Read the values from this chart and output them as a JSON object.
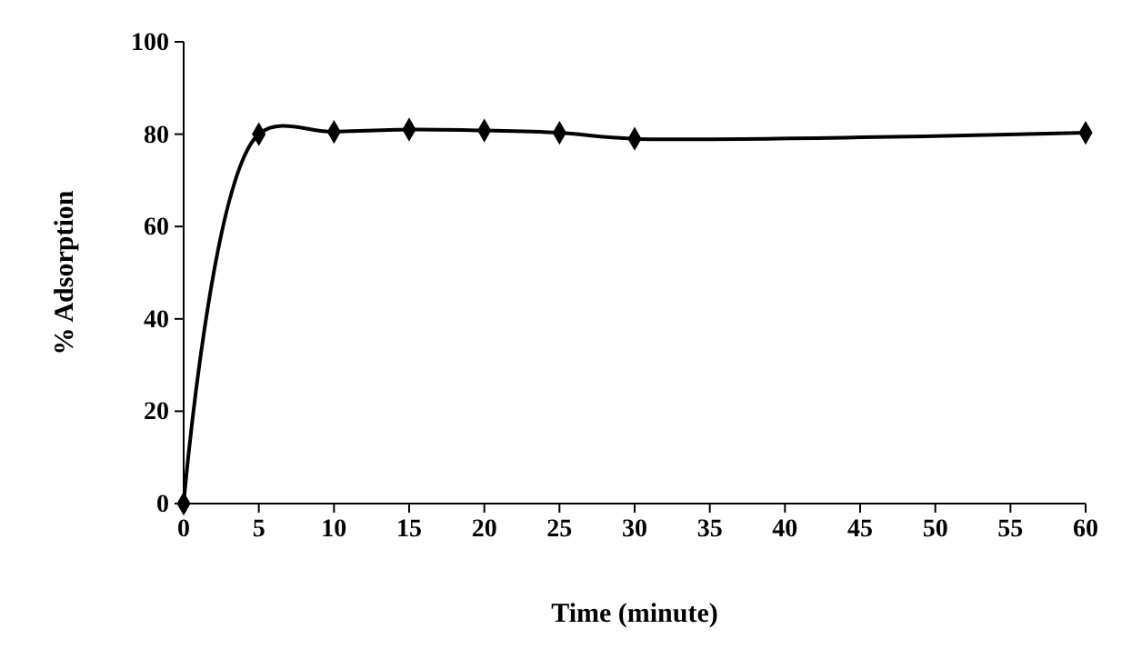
{
  "chart_data": {
    "type": "line",
    "xlabel": "Time (minute)",
    "ylabel": "% Adsorption",
    "x": [
      0,
      5,
      10,
      15,
      20,
      25,
      30,
      60
    ],
    "series": [
      {
        "color": "#000000",
        "values": [
          0,
          80,
          80.5,
          81,
          80.8,
          80.3,
          79,
          80.3
        ]
      }
    ],
    "xlim": [
      0,
      60
    ],
    "xticks": [
      0,
      5,
      10,
      15,
      20,
      25,
      30,
      35,
      40,
      45,
      50,
      55,
      60
    ],
    "ylim": [
      0,
      100
    ],
    "yticks": [
      0,
      20,
      40,
      60,
      80,
      100
    ],
    "marker": "diamond",
    "line_style": "solid"
  }
}
